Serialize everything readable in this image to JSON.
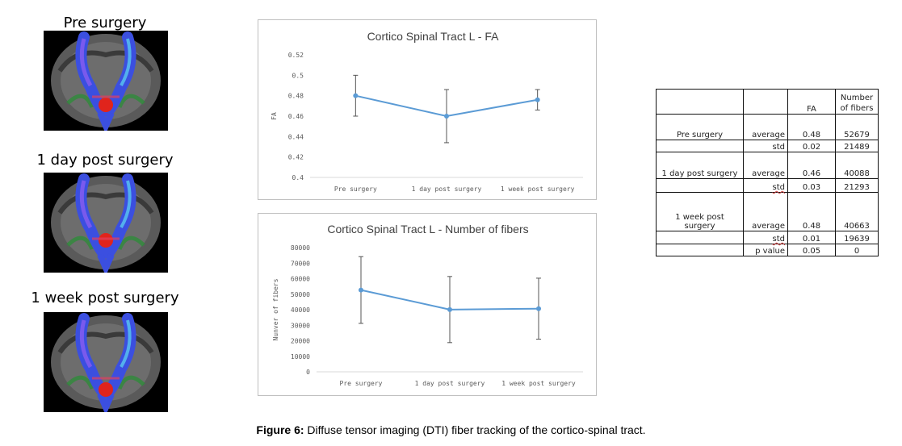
{
  "panels": [
    {
      "label": "Pre surgery"
    },
    {
      "label": "1 day post surgery"
    },
    {
      "label": "1 week post surgery"
    }
  ],
  "chart_data": [
    {
      "type": "line",
      "title": "Cortico Spinal Tract L - FA",
      "xlabel": "",
      "ylabel": "FA",
      "categories": [
        "Pre surgery",
        "1 day post surgery",
        "1 week post surgery"
      ],
      "values": [
        0.48,
        0.46,
        0.476
      ],
      "error": [
        0.02,
        0.026,
        0.01
      ],
      "ylim": [
        0.4,
        0.52
      ],
      "yticks": [
        "0.52",
        "0.5",
        "0.48",
        "0.46",
        "0.44",
        "0.42",
        "0.4"
      ],
      "grid": false,
      "color": "#5b9bd5"
    },
    {
      "type": "line",
      "title": "Cortico Spinal Tract L - Number of fibers",
      "xlabel": "",
      "ylabel": "Nunver of fibers",
      "categories": [
        "Pre surgery",
        "1 day post surgery",
        "1 week post surgery"
      ],
      "values": [
        52679,
        40088,
        40663
      ],
      "error": [
        21489,
        21293,
        19639
      ],
      "ylim": [
        0,
        80000
      ],
      "yticks": [
        "80000",
        "70000",
        "60000",
        "50000",
        "40000",
        "30000",
        "20000",
        "10000",
        "0"
      ],
      "grid": false,
      "color": "#5b9bd5"
    },
    {
      "type": "table",
      "header": {
        "fa": "FA",
        "fibers_line1": "Number",
        "fibers_line2": "of fibers"
      },
      "rows": [
        {
          "group": "Pre surgery",
          "stat": "average",
          "fa": "0.48",
          "fibers": "52679"
        },
        {
          "group": "",
          "stat": "std",
          "fa": "0.02",
          "fibers": "21489"
        },
        {
          "group": "1 day post surgery",
          "stat": "average",
          "fa": "0.46",
          "fibers": "40088"
        },
        {
          "group": "",
          "stat": "std",
          "fa": "0.03",
          "fibers": "21293"
        },
        {
          "group": "1 week post surgery",
          "stat": "average",
          "fa": "0.48",
          "fibers": "40663"
        },
        {
          "group": "",
          "stat": "std",
          "fa": "0.01",
          "fibers": "19639"
        },
        {
          "group": "",
          "stat": "p value",
          "fa": "0.05",
          "fibers": "0"
        }
      ]
    }
  ],
  "caption": {
    "label": "Figure 6:",
    "text": " Diffuse tensor imaging (DTI) fiber tracking of the cortico-spinal tract."
  }
}
